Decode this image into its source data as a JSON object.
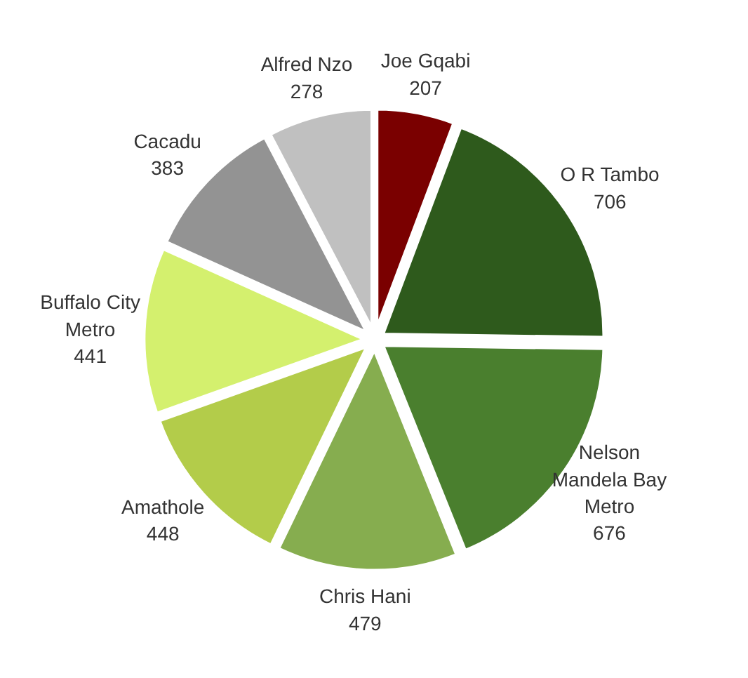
{
  "chart_data": {
    "type": "pie",
    "categories": [
      "Joe Gqabi",
      "O R Tambo",
      "Nelson Mandela Bay Metro",
      "Chris Hani",
      "Amathole",
      "Buffalo City Metro",
      "Cacadu",
      "Alfred Nzo"
    ],
    "values": [
      207,
      706,
      676,
      479,
      448,
      441,
      383,
      278
    ],
    "colors": [
      "#7a0000",
      "#2e5a1c",
      "#4a7f2e",
      "#86ad4f",
      "#b3cc4a",
      "#d4f06e",
      "#939393",
      "#c0c0c0"
    ],
    "data_labels": true
  }
}
